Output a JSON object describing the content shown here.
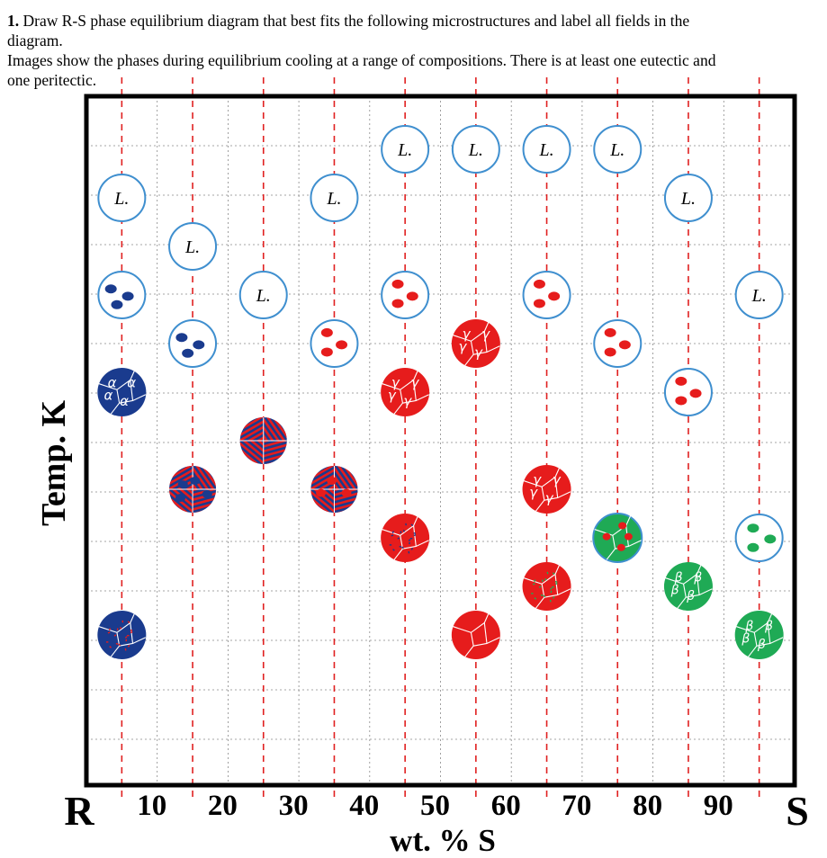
{
  "question": {
    "number": "1.",
    "text_part1": "Draw R-S phase equilibrium diagram that best fits the following microstructures and label all fields in the",
    "text_part2": "diagram.",
    "text_part3": "Images show the phases during equilibrium cooling at a range of compositions. There is at least one eutectic and",
    "text_part4": "one peritectic."
  },
  "axes": {
    "ylabel": "Temp. K",
    "xlabel": "wt. % S",
    "left_end_label": "R",
    "right_end_label": "S",
    "ticks": [
      "10",
      "20",
      "30",
      "40",
      "50",
      "60",
      "70",
      "80",
      "90"
    ]
  },
  "compositions": [
    5,
    15,
    25,
    35,
    45,
    55,
    65,
    75,
    85,
    95
  ],
  "colors": {
    "liquid_outline": "#3f8fcf",
    "alpha": "#1a3b8e",
    "gamma": "#e61c1c",
    "beta": "#1faa55",
    "guide_line": "#e02020",
    "grid": "#888888"
  },
  "labels": {
    "liquid": "L.",
    "alpha": "α",
    "gamma": "γ",
    "beta": "β"
  },
  "microstructures": [
    {
      "c": 5,
      "row": 2,
      "type": "L"
    },
    {
      "c": 5,
      "row": 4,
      "type": "L+alpha"
    },
    {
      "c": 5,
      "row": 6,
      "type": "alpha"
    },
    {
      "c": 5,
      "row": 11,
      "type": "alpha+gamma-precip"
    },
    {
      "c": 15,
      "row": 3,
      "type": "L"
    },
    {
      "c": 15,
      "row": 5,
      "type": "L+alpha"
    },
    {
      "c": 15,
      "row": 8,
      "type": "eutectic+alpha"
    },
    {
      "c": 25,
      "row": 4,
      "type": "L"
    },
    {
      "c": 25,
      "row": 7,
      "type": "eutectic"
    },
    {
      "c": 35,
      "row": 2,
      "type": "L"
    },
    {
      "c": 35,
      "row": 5,
      "type": "L+gamma"
    },
    {
      "c": 35,
      "row": 8,
      "type": "eutectic+gamma"
    },
    {
      "c": 45,
      "row": 1,
      "type": "L"
    },
    {
      "c": 45,
      "row": 4,
      "type": "L+gamma"
    },
    {
      "c": 45,
      "row": 6,
      "type": "gamma"
    },
    {
      "c": 45,
      "row": 9,
      "type": "gamma+alpha-precip"
    },
    {
      "c": 55,
      "row": 1,
      "type": "L"
    },
    {
      "c": 55,
      "row": 5,
      "type": "gamma"
    },
    {
      "c": 55,
      "row": 11,
      "type": "gamma-plain"
    },
    {
      "c": 65,
      "row": 1,
      "type": "L"
    },
    {
      "c": 65,
      "row": 4,
      "type": "L+gamma"
    },
    {
      "c": 65,
      "row": 8,
      "type": "gamma"
    },
    {
      "c": 65,
      "row": 10,
      "type": "gamma+beta-precip"
    },
    {
      "c": 75,
      "row": 1,
      "type": "L"
    },
    {
      "c": 75,
      "row": 5,
      "type": "L+gamma"
    },
    {
      "c": 75,
      "row": 9,
      "type": "beta+gamma-grains"
    },
    {
      "c": 85,
      "row": 2,
      "type": "L"
    },
    {
      "c": 85,
      "row": 6,
      "type": "L+gamma"
    },
    {
      "c": 85,
      "row": 10,
      "type": "beta"
    },
    {
      "c": 95,
      "row": 4,
      "type": "L"
    },
    {
      "c": 95,
      "row": 9,
      "type": "L+beta"
    },
    {
      "c": 95,
      "row": 11,
      "type": "beta"
    }
  ]
}
